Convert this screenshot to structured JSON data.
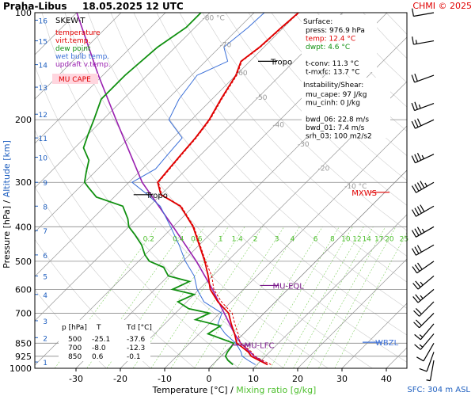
{
  "header": {
    "station": "Praha-Libus",
    "datetime": "18.05.2025 12 UTC",
    "copyright": "CHMI © 2025"
  },
  "footer": {
    "sfc": "SFC: 304 m ASL"
  },
  "colors": {
    "temperature": "#e00000",
    "virt_temp": "#e00000",
    "dew_point": "#109010",
    "wet_bulb": "#3a6fd8",
    "updraft": "#9a20b0",
    "isotherm": "#999999",
    "isobar": "#888888",
    "mixing": "#80d060",
    "adiabat": "#cccccc",
    "wind": "#000000",
    "title_bg": "#ffd6df"
  },
  "chart_data": {
    "type": "line",
    "title": "SKEW-T",
    "xlabel": "Temperature [°C]",
    "xlabel_sep": " / ",
    "xlabel2": "Mixing ratio [g/kg]",
    "ylabel": "Pressure [hPa]",
    "ylabel_sep": " / ",
    "ylabel2": "Altitude [km]",
    "x_ticks": [
      -30,
      -20,
      -10,
      0,
      10,
      20,
      30,
      40
    ],
    "pressure_levels": [
      100,
      200,
      300,
      400,
      500,
      600,
      700,
      850,
      925,
      1000
    ],
    "altitude_ticks": [
      {
        "km": "1",
        "p": 960
      },
      {
        "km": "2",
        "p": 820
      },
      {
        "km": "3",
        "p": 735
      },
      {
        "km": "4",
        "p": 620
      },
      {
        "km": "5",
        "p": 550
      },
      {
        "km": "6",
        "p": 480
      },
      {
        "km": "7",
        "p": 410
      },
      {
        "km": "8",
        "p": 350
      },
      {
        "km": "9",
        "p": 300
      },
      {
        "km": "10",
        "p": 255
      },
      {
        "km": "11",
        "p": 225
      },
      {
        "km": "12",
        "p": 193
      },
      {
        "km": "13",
        "p": 162
      },
      {
        "km": "14",
        "p": 140
      },
      {
        "km": "15",
        "p": 120
      },
      {
        "km": "16",
        "p": 105
      }
    ],
    "isotherm_labels": [
      {
        "text": "-80 °C",
        "t": -80,
        "p": 105
      },
      {
        "text": "-70",
        "t": -70,
        "p": 125
      },
      {
        "text": "-60",
        "t": -60,
        "p": 150
      },
      {
        "text": "-50",
        "t": -50,
        "p": 176
      },
      {
        "text": "-40",
        "t": -40,
        "p": 210
      },
      {
        "text": "-30",
        "t": -30,
        "p": 238
      },
      {
        "text": "-20",
        "t": -20,
        "p": 278
      },
      {
        "text": "-10 °C",
        "t": -10,
        "p": 312
      }
    ],
    "mixing_ratio_labels": [
      "0.2",
      "0.4",
      "0.6",
      "1",
      "1.4",
      "2",
      "3",
      "4",
      "6",
      "8",
      "10",
      "12",
      "14",
      "17",
      "20",
      "25"
    ],
    "legend": [
      {
        "label": "temperature",
        "color": "#e00000"
      },
      {
        "label": "virt.temp.",
        "color": "#e00000"
      },
      {
        "label": "dew point",
        "color": "#109010"
      },
      {
        "label": "wet bulb temp.",
        "color": "#3a6fd8"
      },
      {
        "label": "updraft v.temp.",
        "color": "#9a20b0"
      }
    ],
    "legend_badge": "MU CAPE",
    "surface_block": {
      "title": "Surface:",
      "lines": [
        {
          "text": "press: 976.9 hPa",
          "color": "#000000"
        },
        {
          "text": "temp: 12.4 °C",
          "color": "#e00000"
        },
        {
          "text": "dwpt: 4.6 °C",
          "color": "#109010"
        },
        {
          "text": "",
          "color": "#000000"
        },
        {
          "text": "t-conv: 11.3 °C",
          "color": "#000000"
        },
        {
          "text": "t-mxfc: 13.7 °C",
          "color": "#000000"
        }
      ]
    },
    "instability_block": {
      "title": "Instability/Shear:",
      "lines": [
        "mu_cape: 97 J/kg",
        "mu_cinh: 0 J/kg",
        "",
        "bwd_06: 22.8 m/s",
        "bwd_01: 7.4 m/s",
        "srh_03: 100 m2/s2"
      ]
    },
    "table": {
      "headers": [
        "p [hPa]",
        "T",
        "Td [°C]"
      ],
      "rows": [
        [
          "500",
          "-25.1",
          "-37.6"
        ],
        [
          "700",
          "-8.0",
          "-12.3"
        ],
        [
          "850",
          "0.6",
          "-0.1"
        ]
      ]
    },
    "markers": [
      {
        "label": "Tropo",
        "t": -56,
        "p": 137,
        "color": "#000000"
      },
      {
        "label": "Tropo",
        "t": -54,
        "p": 325,
        "color": "#000000"
      },
      {
        "label": "MXWS",
        "t": 45,
        "p": 320,
        "color": "#e00000"
      },
      {
        "label": "MU-EQL",
        "t": -5,
        "p": 585,
        "color": "#7a1a8a"
      },
      {
        "label": "MU-LFC",
        "t": 2,
        "p": 860,
        "color": "#7a1a8a"
      },
      {
        "label": "WBZL",
        "t": 32,
        "p": 845,
        "color": "#3a6fd8"
      }
    ],
    "temperature": [
      [
        976.9,
        12.4
      ],
      [
        950,
        9.5
      ],
      [
        925,
        6.8
      ],
      [
        900,
        5.2
      ],
      [
        870,
        2.5
      ],
      [
        850,
        0.6
      ],
      [
        800,
        -2.0
      ],
      [
        750,
        -5.0
      ],
      [
        700,
        -8.0
      ],
      [
        650,
        -13.0
      ],
      [
        600,
        -17.5
      ],
      [
        550,
        -21.0
      ],
      [
        500,
        -25.1
      ],
      [
        450,
        -30.0
      ],
      [
        400,
        -35.5
      ],
      [
        350,
        -43.0
      ],
      [
        325,
        -50.0
      ],
      [
        300,
        -53.5
      ],
      [
        275,
        -54.0
      ],
      [
        250,
        -54.5
      ],
      [
        225,
        -55.0
      ],
      [
        200,
        -56.0
      ],
      [
        175,
        -58.0
      ],
      [
        150,
        -60.0
      ],
      [
        137,
        -62.0
      ],
      [
        125,
        -61.0
      ],
      [
        110,
        -60.5
      ],
      [
        100,
        -60.0
      ]
    ],
    "dew_point": [
      [
        976.9,
        4.6
      ],
      [
        950,
        2.5
      ],
      [
        925,
        1.0
      ],
      [
        900,
        0.5
      ],
      [
        870,
        0.2
      ],
      [
        850,
        -0.1
      ],
      [
        800,
        -8.0
      ],
      [
        760,
        -7.0
      ],
      [
        730,
        -14.0
      ],
      [
        700,
        -12.3
      ],
      [
        680,
        -18.0
      ],
      [
        650,
        -22.0
      ],
      [
        620,
        -20.0
      ],
      [
        600,
        -26.0
      ],
      [
        570,
        -24.0
      ],
      [
        550,
        -30.0
      ],
      [
        520,
        -33.0
      ],
      [
        500,
        -37.6
      ],
      [
        480,
        -40.0
      ],
      [
        450,
        -43.0
      ],
      [
        420,
        -47.0
      ],
      [
        400,
        -50.0
      ],
      [
        380,
        -52.0
      ],
      [
        350,
        -56.0
      ],
      [
        330,
        -64.0
      ],
      [
        310,
        -68.0
      ],
      [
        300,
        -70.0
      ],
      [
        280,
        -72.0
      ],
      [
        260,
        -74.0
      ],
      [
        240,
        -78.0
      ],
      [
        220,
        -80.0
      ],
      [
        200,
        -82.0
      ],
      [
        175,
        -85.0
      ],
      [
        150,
        -85.0
      ],
      [
        125,
        -84.0
      ],
      [
        110,
        -82.0
      ],
      [
        100,
        -82.0
      ]
    ],
    "updraft": [
      [
        976.9,
        12.4
      ],
      [
        925,
        7.5
      ],
      [
        850,
        1.5
      ],
      [
        800,
        -2.0
      ],
      [
        700,
        -9.0
      ],
      [
        600,
        -17.0
      ],
      [
        500,
        -27.0
      ],
      [
        400,
        -40.0
      ],
      [
        300,
        -57.0
      ],
      [
        250,
        -66.0
      ],
      [
        200,
        -77.0
      ],
      [
        150,
        -91.0
      ],
      [
        100,
        -110.0
      ]
    ],
    "wind_barbs": [
      {
        "p": 100,
        "dir": 260,
        "spd": 10
      },
      {
        "p": 120,
        "dir": 260,
        "spd": 15
      },
      {
        "p": 150,
        "dir": 250,
        "spd": 20
      },
      {
        "p": 180,
        "dir": 250,
        "spd": 25
      },
      {
        "p": 200,
        "dir": 245,
        "spd": 30
      },
      {
        "p": 250,
        "dir": 245,
        "spd": 35
      },
      {
        "p": 300,
        "dir": 240,
        "spd": 45
      },
      {
        "p": 350,
        "dir": 240,
        "spd": 40
      },
      {
        "p": 400,
        "dir": 240,
        "spd": 35
      },
      {
        "p": 450,
        "dir": 240,
        "spd": 30
      },
      {
        "p": 500,
        "dir": 235,
        "spd": 30
      },
      {
        "p": 550,
        "dir": 230,
        "spd": 25
      },
      {
        "p": 600,
        "dir": 230,
        "spd": 25
      },
      {
        "p": 650,
        "dir": 225,
        "spd": 20
      },
      {
        "p": 700,
        "dir": 225,
        "spd": 20
      },
      {
        "p": 750,
        "dir": 220,
        "spd": 15
      },
      {
        "p": 800,
        "dir": 220,
        "spd": 15
      },
      {
        "p": 850,
        "dir": 210,
        "spd": 10
      },
      {
        "p": 900,
        "dir": 200,
        "spd": 10
      },
      {
        "p": 950,
        "dir": 190,
        "spd": 5
      }
    ]
  }
}
